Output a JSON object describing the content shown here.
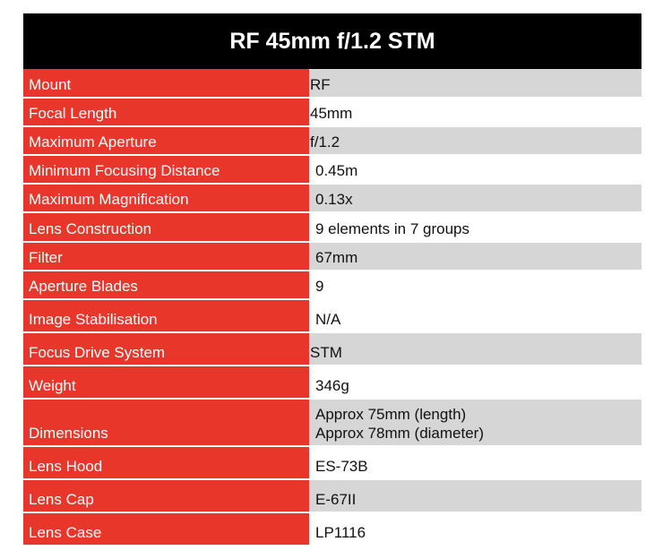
{
  "title": "RF 45mm f/1.2 STM",
  "rows": [
    {
      "label": "Mount",
      "values": [
        "RF"
      ]
    },
    {
      "label": "Focal Length",
      "values": [
        "45mm"
      ]
    },
    {
      "label": "Maximum Aperture",
      "values": [
        "f/1.2"
      ]
    },
    {
      "label": "Minimum Focusing Distance",
      "values": [
        "0.45m"
      ]
    },
    {
      "label": "Maximum Magnification",
      "values": [
        "0.13x"
      ]
    },
    {
      "label": "Lens Construction",
      "values": [
        "9 elements in 7 groups"
      ]
    },
    {
      "label": "Filter",
      "values": [
        "67mm"
      ]
    },
    {
      "label": "Aperture Blades",
      "values": [
        "9"
      ]
    },
    {
      "label": "Image Stabilisation",
      "values": [
        "N/A"
      ]
    },
    {
      "label": "Focus Drive System",
      "values": [
        "STM"
      ]
    },
    {
      "label": "Weight",
      "values": [
        "346g"
      ]
    },
    {
      "label": "Dimensions",
      "values": [
        "Approx 75mm (length)",
        "Approx 78mm (diameter)"
      ]
    },
    {
      "label": "Lens Hood",
      "values": [
        "ES-73B"
      ]
    },
    {
      "label": "Lens Cap",
      "values": [
        "E-67II"
      ]
    },
    {
      "label": "Lens Case",
      "values": [
        "LP1116"
      ]
    }
  ],
  "colors": {
    "title_background": "#000000",
    "label_background": "#e8362a",
    "value_shaded": "#d6d6d6",
    "value_plain": "#ffffff"
  }
}
